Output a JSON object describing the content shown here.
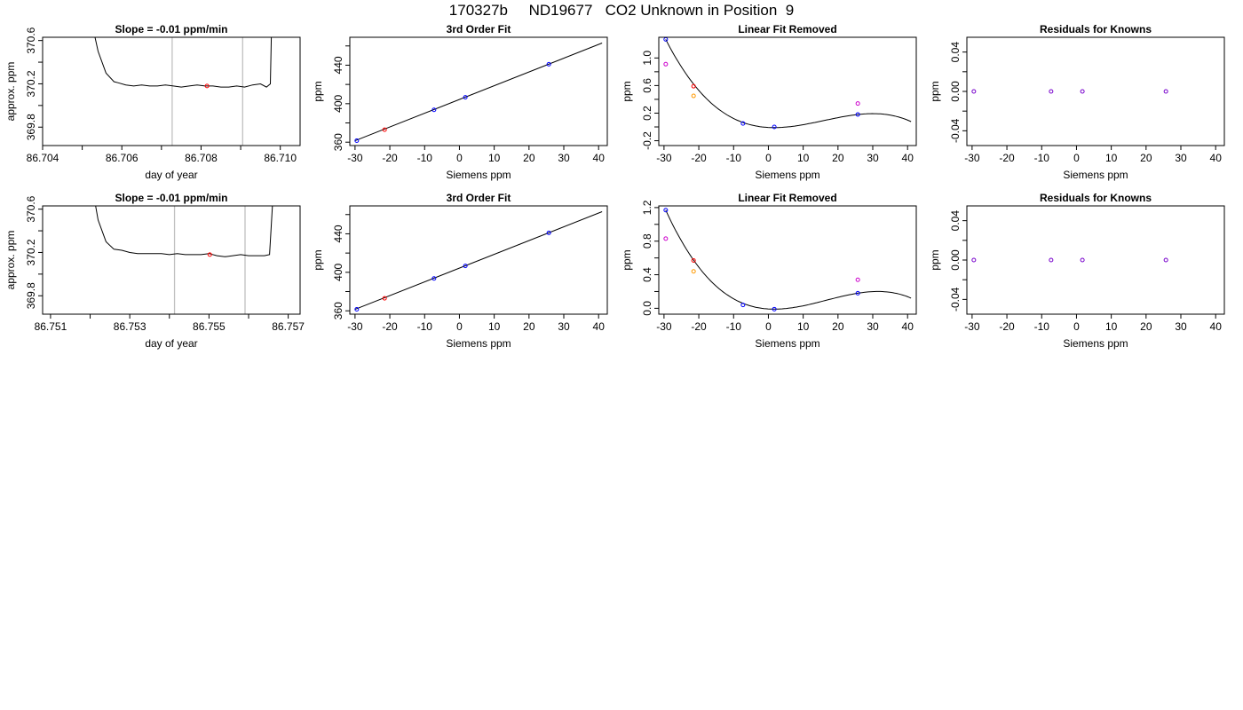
{
  "figure": {
    "title": "170327b     ND19677   CO2 Unknown in Position  9"
  },
  "colors": {
    "axis": "#000000",
    "line": "#000000",
    "grid_vline": "#c0c0c0",
    "known_point": "#0000ff",
    "unknown_point": "#ff0000",
    "residual_point": "#7700cc",
    "magenta_point": "#cc00cc",
    "orange_point": "#ff9900"
  },
  "chart_data": [
    {
      "panel": "row1-col1",
      "type": "line",
      "title": "Slope =  -0.01  ppm/min",
      "xlabel": "day of year",
      "ylabel": "approx. ppm",
      "xlim": [
        86.704,
        86.7105
      ],
      "ylim": [
        369.63,
        370.63
      ],
      "xticks": [
        86.704,
        86.705,
        86.706,
        86.707,
        86.708,
        86.709,
        86.71
      ],
      "xtick_labels": [
        "86.704",
        "",
        "86.706",
        "",
        "86.708",
        "",
        "86.710"
      ],
      "yticks": [
        369.8,
        370.0,
        370.2,
        370.4,
        370.6
      ],
      "ytick_labels": [
        "369.8",
        "",
        "370.2",
        "",
        "370.6"
      ],
      "vlines": [
        86.70727,
        86.70905
      ],
      "marker": {
        "x": 86.70815,
        "y": 370.18,
        "color": "unknown_point"
      },
      "series": [
        {
          "x": [
            86.70525,
            86.7054,
            86.7056,
            86.7058,
            86.7059,
            86.7061,
            86.7063,
            86.7065,
            86.7067,
            86.7069,
            86.7071,
            86.7073,
            86.7075,
            86.7077,
            86.7079,
            86.7081,
            86.7083,
            86.7085,
            86.7087,
            86.7089,
            86.7091,
            86.7093,
            86.7095,
            86.70965,
            86.70975,
            86.70978
          ],
          "y": [
            370.75,
            370.5,
            370.3,
            370.22,
            370.21,
            370.19,
            370.18,
            370.19,
            370.18,
            370.18,
            370.19,
            370.18,
            370.17,
            370.18,
            370.19,
            370.18,
            370.18,
            370.17,
            370.17,
            370.18,
            370.17,
            370.19,
            370.2,
            370.17,
            370.2,
            370.75
          ]
        }
      ]
    },
    {
      "panel": "row1-col2",
      "type": "scatter",
      "title": "3rd Order Fit",
      "xlabel": "Siemens ppm",
      "ylabel": "ppm",
      "xlim": [
        -31.5,
        42.5
      ],
      "ylim": [
        356.5,
        469
      ],
      "xticks": [
        -30,
        -20,
        -10,
        0,
        10,
        20,
        30,
        40
      ],
      "yticks": [
        360,
        380,
        400,
        420,
        440,
        460
      ],
      "ytick_labels": [
        "360",
        "",
        "400",
        "",
        "440",
        ""
      ],
      "fit_line": {
        "x": [
          -30,
          41
        ],
        "y": [
          361.5,
          463
        ]
      },
      "points": [
        {
          "x": -29.5,
          "y": 361.6,
          "color": "known_point"
        },
        {
          "x": -21.5,
          "y": 373.0,
          "color": "unknown_point"
        },
        {
          "x": -7.3,
          "y": 393.6,
          "color": "known_point"
        },
        {
          "x": 1.7,
          "y": 406.6,
          "color": "known_point"
        },
        {
          "x": 25.7,
          "y": 441.0,
          "color": "known_point"
        }
      ]
    },
    {
      "panel": "row1-col3",
      "type": "scatter",
      "title": "Linear Fit Removed",
      "xlabel": "Siemens ppm",
      "ylabel": "ppm",
      "xlim": [
        -31.5,
        42.5
      ],
      "ylim": [
        -0.27,
        1.3
      ],
      "xticks": [
        -30,
        -20,
        -10,
        0,
        10,
        20,
        30,
        40
      ],
      "yticks": [
        -0.2,
        0.0,
        0.2,
        0.4,
        0.6,
        0.8,
        1.0
      ],
      "ytick_labels": [
        "-0.2",
        "",
        "0.2",
        "",
        "0.6",
        "",
        "1.0"
      ],
      "curve": {
        "x0": 1.7,
        "x1": 25.7,
        "y0": -0.01,
        "y1": 0.18,
        "xa": -29.5,
        "ya": 1.27,
        "xmax": 41
      },
      "points": [
        {
          "x": -29.5,
          "y": 1.27,
          "color": "known_point"
        },
        {
          "x": -29.5,
          "y": 0.91,
          "color": "magenta_point"
        },
        {
          "x": -21.5,
          "y": 0.59,
          "color": "unknown_point"
        },
        {
          "x": -21.5,
          "y": 0.45,
          "color": "orange_point"
        },
        {
          "x": -7.3,
          "y": 0.05,
          "color": "known_point"
        },
        {
          "x": 1.7,
          "y": 0.0,
          "color": "known_point"
        },
        {
          "x": 25.7,
          "y": 0.18,
          "color": "known_point"
        },
        {
          "x": 25.7,
          "y": 0.34,
          "color": "magenta_point"
        }
      ]
    },
    {
      "panel": "row1-col4",
      "type": "scatter",
      "title": "Residuals for Knowns",
      "xlabel": "Siemens ppm",
      "ylabel": "ppm",
      "xlim": [
        -31.5,
        42.5
      ],
      "ylim": [
        -0.055,
        0.055
      ],
      "xticks": [
        -30,
        -20,
        -10,
        0,
        10,
        20,
        30,
        40
      ],
      "yticks": [
        -0.04,
        -0.02,
        0.0,
        0.02,
        0.04
      ],
      "ytick_labels": [
        "-0.04",
        "",
        "0.00",
        "",
        "0.04"
      ],
      "points": [
        {
          "x": -29.5,
          "y": 0.0,
          "color": "residual_point"
        },
        {
          "x": -7.3,
          "y": 0.0,
          "color": "residual_point"
        },
        {
          "x": 1.7,
          "y": 0.0,
          "color": "residual_point"
        },
        {
          "x": 25.7,
          "y": 0.0,
          "color": "residual_point"
        }
      ]
    },
    {
      "panel": "row2-col1",
      "type": "line",
      "title": "Slope =  -0.01  ppm/min",
      "xlabel": "day of year",
      "ylabel": "approx. ppm",
      "xlim": [
        86.7508,
        86.7573
      ],
      "ylim": [
        369.63,
        370.63
      ],
      "xticks": [
        86.751,
        86.752,
        86.753,
        86.754,
        86.755,
        86.756,
        86.757
      ],
      "xtick_labels": [
        "86.751",
        "",
        "86.753",
        "",
        "86.755",
        "",
        "86.757"
      ],
      "yticks": [
        369.8,
        370.0,
        370.2,
        370.4,
        370.6
      ],
      "ytick_labels": [
        "369.8",
        "",
        "370.2",
        "",
        "370.6"
      ],
      "vlines": [
        86.75413,
        86.75591
      ],
      "marker": {
        "x": 86.75502,
        "y": 370.18,
        "color": "unknown_point"
      },
      "series": [
        {
          "x": [
            86.75208,
            86.7522,
            86.7524,
            86.7526,
            86.7528,
            86.753,
            86.7532,
            86.7534,
            86.7536,
            86.7538,
            86.754,
            86.7542,
            86.7544,
            86.7546,
            86.7548,
            86.755,
            86.7552,
            86.7554,
            86.7556,
            86.7558,
            86.756,
            86.7562,
            86.7564,
            86.75653,
            86.75662
          ],
          "y": [
            370.75,
            370.5,
            370.3,
            370.23,
            370.22,
            370.2,
            370.19,
            370.19,
            370.19,
            370.19,
            370.18,
            370.19,
            370.18,
            370.18,
            370.18,
            370.19,
            370.17,
            370.16,
            370.17,
            370.18,
            370.17,
            370.17,
            370.17,
            370.18,
            370.75
          ]
        }
      ]
    },
    {
      "panel": "row2-col2",
      "type": "scatter",
      "title": "3rd Order Fit",
      "xlabel": "Siemens ppm",
      "ylabel": "ppm",
      "xlim": [
        -31.5,
        42.5
      ],
      "ylim": [
        356.5,
        469
      ],
      "xticks": [
        -30,
        -20,
        -10,
        0,
        10,
        20,
        30,
        40
      ],
      "yticks": [
        360,
        380,
        400,
        420,
        440,
        460
      ],
      "ytick_labels": [
        "360",
        "",
        "400",
        "",
        "440",
        ""
      ],
      "fit_line": {
        "x": [
          -30,
          41
        ],
        "y": [
          361.5,
          463
        ]
      },
      "points": [
        {
          "x": -29.5,
          "y": 361.6,
          "color": "known_point"
        },
        {
          "x": -21.5,
          "y": 373.0,
          "color": "unknown_point"
        },
        {
          "x": -7.3,
          "y": 393.6,
          "color": "known_point"
        },
        {
          "x": 1.7,
          "y": 406.6,
          "color": "known_point"
        },
        {
          "x": 25.7,
          "y": 441.0,
          "color": "known_point"
        }
      ]
    },
    {
      "panel": "row2-col3",
      "type": "scatter",
      "title": "Linear Fit Removed",
      "xlabel": "Siemens ppm",
      "ylabel": "ppm",
      "xlim": [
        -31.5,
        42.5
      ],
      "ylim": [
        -0.07,
        1.22
      ],
      "xticks": [
        -30,
        -20,
        -10,
        0,
        10,
        20,
        30,
        40
      ],
      "yticks": [
        0.0,
        0.2,
        0.4,
        0.6,
        0.8,
        1.0,
        1.2
      ],
      "ytick_labels": [
        "0.0",
        "",
        "0.4",
        "",
        "0.8",
        "",
        "1.2"
      ],
      "curve": {
        "x0": 1.7,
        "x1": 25.7,
        "y0": -0.01,
        "y1": 0.18,
        "xa": -29.5,
        "ya": 1.17,
        "xmax": 41
      },
      "points": [
        {
          "x": -29.5,
          "y": 1.17,
          "color": "known_point"
        },
        {
          "x": -29.5,
          "y": 0.83,
          "color": "magenta_point"
        },
        {
          "x": -21.5,
          "y": 0.57,
          "color": "unknown_point"
        },
        {
          "x": -21.5,
          "y": 0.44,
          "color": "orange_point"
        },
        {
          "x": -7.3,
          "y": 0.04,
          "color": "known_point"
        },
        {
          "x": 1.7,
          "y": -0.01,
          "color": "known_point"
        },
        {
          "x": 25.7,
          "y": 0.18,
          "color": "known_point"
        },
        {
          "x": 25.7,
          "y": 0.34,
          "color": "magenta_point"
        }
      ]
    },
    {
      "panel": "row2-col4",
      "type": "scatter",
      "title": "Residuals for Knowns",
      "xlabel": "Siemens ppm",
      "ylabel": "ppm",
      "xlim": [
        -31.5,
        42.5
      ],
      "ylim": [
        -0.055,
        0.055
      ],
      "xticks": [
        -30,
        -20,
        -10,
        0,
        10,
        20,
        30,
        40
      ],
      "yticks": [
        -0.04,
        -0.02,
        0.0,
        0.02,
        0.04
      ],
      "ytick_labels": [
        "-0.04",
        "",
        "0.00",
        "",
        "0.04"
      ],
      "points": [
        {
          "x": -29.5,
          "y": 0.0,
          "color": "residual_point"
        },
        {
          "x": -7.3,
          "y": 0.0,
          "color": "residual_point"
        },
        {
          "x": 1.7,
          "y": 0.0,
          "color": "residual_point"
        },
        {
          "x": 25.7,
          "y": 0.0,
          "color": "residual_point"
        }
      ]
    }
  ]
}
